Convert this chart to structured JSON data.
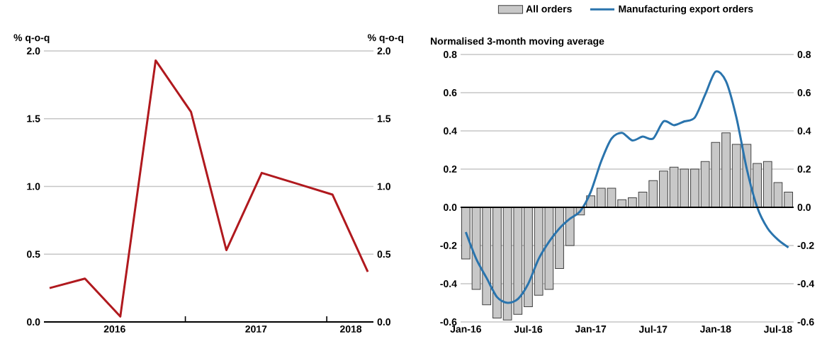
{
  "chart_data": [
    {
      "type": "line",
      "ylabel": "% q-o-q",
      "y2label": "% q-o-q",
      "color": "#b0191e",
      "x": [
        2016.04,
        2016.29,
        2016.54,
        2016.79,
        2017.04,
        2017.29,
        2017.54,
        2017.79,
        2018.04,
        2018.29
      ],
      "values": [
        0.25,
        0.32,
        0.04,
        1.93,
        1.55,
        0.53,
        1.1,
        1.02,
        0.94,
        0.37
      ],
      "xlim": [
        2016,
        2018.33
      ],
      "xticks": [
        {
          "value": 2016.5,
          "label": "2016"
        },
        {
          "value": 2017,
          "label": null
        },
        {
          "value": 2017.5,
          "label": "2017"
        },
        {
          "value": 2018,
          "label": null
        },
        {
          "value": 2018.17,
          "label": "2018"
        }
      ],
      "ylim": [
        0,
        2
      ],
      "yticks": [
        {
          "value": 0,
          "label": "0.0"
        },
        {
          "value": 0.5,
          "label": "0.5"
        },
        {
          "value": 1,
          "label": "1.0"
        },
        {
          "value": 1.5,
          "label": "1.5"
        },
        {
          "value": 2,
          "label": "2.0"
        }
      ],
      "y2lim": [
        0,
        2
      ],
      "y2ticks": [
        {
          "value": 0,
          "label": "0.0"
        },
        {
          "value": 0.5,
          "label": "0.5"
        },
        {
          "value": 1,
          "label": "1.0"
        },
        {
          "value": 1.5,
          "label": "1.5"
        },
        {
          "value": 2,
          "label": "2.0"
        }
      ],
      "grid": "y"
    },
    {
      "type": "bar",
      "ylabel": "Normalised 3-month moving average",
      "categories": [
        "Jan-16",
        null,
        null,
        null,
        null,
        null,
        "Jul-16",
        null,
        null,
        null,
        null,
        null,
        "Jan-17",
        null,
        null,
        null,
        null,
        null,
        "Jul-17",
        null,
        null,
        null,
        null,
        null,
        "Jan-18",
        null,
        null,
        null,
        null,
        null,
        "Jul-18",
        null
      ],
      "series": [
        {
          "name": "All orders",
          "type": "bar",
          "color": "#c8c8c8",
          "values": [
            -0.27,
            -0.43,
            -0.51,
            -0.58,
            -0.59,
            -0.56,
            -0.52,
            -0.46,
            -0.43,
            -0.32,
            -0.2,
            -0.04,
            0.06,
            0.1,
            0.1,
            0.04,
            0.05,
            0.08,
            0.14,
            0.19,
            0.21,
            0.2,
            0.2,
            0.24,
            0.34,
            0.39,
            0.33,
            0.33,
            0.23,
            0.24,
            0.13,
            0.08
          ]
        },
        {
          "name": "Manufacturing export orders",
          "type": "line",
          "color": "#2a74ad",
          "values": [
            -0.13,
            -0.27,
            -0.37,
            -0.47,
            -0.5,
            -0.48,
            -0.4,
            -0.27,
            -0.18,
            -0.11,
            -0.06,
            -0.02,
            0.08,
            0.24,
            0.36,
            0.39,
            0.35,
            0.37,
            0.36,
            0.45,
            0.43,
            0.45,
            0.47,
            0.59,
            0.71,
            0.66,
            0.47,
            0.2,
            0.0,
            -0.11,
            -0.17,
            -0.21
          ]
        }
      ],
      "ylim": [
        -0.6,
        0.8
      ],
      "yticks": [
        {
          "value": -0.6,
          "label": "-0.6"
        },
        {
          "value": -0.4,
          "label": "-0.4"
        },
        {
          "value": -0.2,
          "label": "-0.2"
        },
        {
          "value": 0,
          "label": "0.0"
        },
        {
          "value": 0.2,
          "label": "0.2"
        },
        {
          "value": 0.4,
          "label": "0.4"
        },
        {
          "value": 0.6,
          "label": "0.6"
        },
        {
          "value": 0.8,
          "label": "0.8"
        }
      ],
      "y2lim": [
        -0.6,
        0.8
      ],
      "y2ticks": [
        {
          "value": -0.6,
          "label": "-0.6"
        },
        {
          "value": -0.4,
          "label": "-0.4"
        },
        {
          "value": -0.2,
          "label": "-0.2"
        },
        {
          "value": 0,
          "label": "0.0"
        },
        {
          "value": 0.2,
          "label": "0.2"
        },
        {
          "value": 0.4,
          "label": "0.4"
        },
        {
          "value": 0.6,
          "label": "0.6"
        },
        {
          "value": 0.8,
          "label": "0.8"
        }
      ],
      "grid": "y",
      "legend": "top"
    }
  ]
}
